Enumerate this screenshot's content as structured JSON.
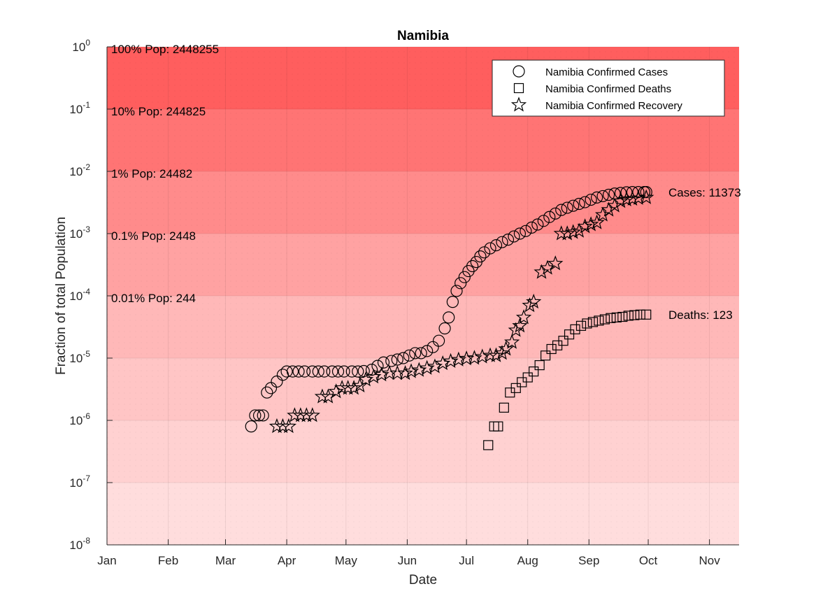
{
  "chart_data": {
    "type": "scatter",
    "title": "Namibia",
    "xlabel": "Date",
    "ylabel": "Fraction of total Population",
    "x_ticks": [
      "Jan",
      "Feb",
      "Mar",
      "Apr",
      "May",
      "Jun",
      "Jul",
      "Aug",
      "Sep",
      "Oct",
      "Nov"
    ],
    "x_range_days": [
      0,
      320
    ],
    "y_scale": "log",
    "ylim": [
      1e-08,
      1
    ],
    "y_ticks": [
      1,
      0.1,
      0.01,
      0.001,
      0.0001,
      1e-05,
      1e-06,
      1e-07,
      1e-08
    ],
    "population_bands": [
      {
        "label": "100% Pop: 2448255",
        "from": 0.1,
        "to": 1,
        "color": "#ff5e5e"
      },
      {
        "label": "10% Pop: 244825",
        "from": 0.01,
        "to": 0.1,
        "color": "#ff7474"
      },
      {
        "label": "1% Pop: 24482",
        "from": 0.001,
        "to": 0.01,
        "color": "#ff8b8b"
      },
      {
        "label": "0.1% Pop: 2448",
        "from": 0.0001,
        "to": 0.001,
        "color": "#ffa2a2"
      },
      {
        "label": "0.01% Pop: 244",
        "from": 1e-05,
        "to": 0.0001,
        "color": "#ffb8b8"
      },
      {
        "label": "",
        "from": 1e-06,
        "to": 1e-05,
        "color": "#ffc5c5"
      },
      {
        "label": "",
        "from": 1e-07,
        "to": 1e-06,
        "color": "#ffd1d1"
      },
      {
        "label": "",
        "from": 1e-08,
        "to": 1e-07,
        "color": "#ffdddd"
      }
    ],
    "legend": {
      "placement": "top-right",
      "entries": [
        "Namibia Confirmed Cases",
        "Namibia Confirmed Deaths",
        "Namibia Confirmed Recovery"
      ]
    },
    "end_labels": {
      "cases": "Cases: 11373",
      "deaths": "Deaths: 123"
    },
    "series": [
      {
        "name": "Namibia Confirmed Cases",
        "marker": "circle",
        "x": [
          "2020-03-14",
          "2020-03-16",
          "2020-03-18",
          "2020-03-20",
          "2020-03-22",
          "2020-03-24",
          "2020-03-27",
          "2020-03-30",
          "2020-04-01",
          "2020-04-04",
          "2020-04-07",
          "2020-04-10",
          "2020-04-14",
          "2020-04-17",
          "2020-04-20",
          "2020-04-24",
          "2020-04-27",
          "2020-04-30",
          "2020-05-04",
          "2020-05-07",
          "2020-05-10",
          "2020-05-14",
          "2020-05-17",
          "2020-05-20",
          "2020-05-24",
          "2020-05-27",
          "2020-05-30",
          "2020-06-02",
          "2020-06-05",
          "2020-06-08",
          "2020-06-11",
          "2020-06-14",
          "2020-06-17",
          "2020-06-20",
          "2020-06-22",
          "2020-06-24",
          "2020-06-26",
          "2020-06-28",
          "2020-06-30",
          "2020-07-02",
          "2020-07-04",
          "2020-07-06",
          "2020-07-08",
          "2020-07-10",
          "2020-07-13",
          "2020-07-16",
          "2020-07-19",
          "2020-07-22",
          "2020-07-25",
          "2020-07-28",
          "2020-07-31",
          "2020-08-03",
          "2020-08-06",
          "2020-08-09",
          "2020-08-12",
          "2020-08-15",
          "2020-08-18",
          "2020-08-21",
          "2020-08-24",
          "2020-08-27",
          "2020-08-30",
          "2020-09-02",
          "2020-09-05",
          "2020-09-08",
          "2020-09-11",
          "2020-09-14",
          "2020-09-17",
          "2020-09-20",
          "2020-09-23",
          "2020-09-26",
          "2020-09-29",
          "2020-09-30"
        ],
        "values": [
          8e-07,
          1.2e-06,
          1.2e-06,
          1.2e-06,
          2.8e-06,
          3.3e-06,
          4.2e-06,
          5.4e-06,
          6.1e-06,
          6.1e-06,
          6.1e-06,
          6.1e-06,
          6.1e-06,
          6.1e-06,
          6.1e-06,
          6.1e-06,
          6.1e-06,
          6.1e-06,
          6.1e-06,
          6.1e-06,
          6.2e-06,
          6.5e-06,
          7.5e-06,
          8.5e-06,
          9e-06,
          9.5e-06,
          1e-05,
          1.1e-05,
          1.2e-05,
          1.2e-05,
          1.3e-05,
          1.5e-05,
          1.9e-05,
          3e-05,
          4.5e-05,
          8e-05,
          0.00012,
          0.00016,
          0.0002,
          0.00025,
          0.0003,
          0.00035,
          0.00043,
          0.0005,
          0.00058,
          0.00065,
          0.00073,
          0.0008,
          0.0009,
          0.001,
          0.0011,
          0.00125,
          0.0014,
          0.0016,
          0.00185,
          0.0021,
          0.0024,
          0.0026,
          0.0028,
          0.003,
          0.0032,
          0.0035,
          0.0038,
          0.004,
          0.0042,
          0.0044,
          0.0045,
          0.0046,
          0.00465,
          0.00465,
          0.00465,
          0.00465
        ]
      },
      {
        "name": "Namibia Confirmed Deaths",
        "marker": "square",
        "x": [
          "2020-07-12",
          "2020-07-15",
          "2020-07-17",
          "2020-07-20",
          "2020-07-23",
          "2020-07-26",
          "2020-07-29",
          "2020-08-01",
          "2020-08-04",
          "2020-08-07",
          "2020-08-10",
          "2020-08-13",
          "2020-08-16",
          "2020-08-19",
          "2020-08-22",
          "2020-08-25",
          "2020-08-28",
          "2020-08-31",
          "2020-09-03",
          "2020-09-06",
          "2020-09-09",
          "2020-09-12",
          "2020-09-15",
          "2020-09-18",
          "2020-09-21",
          "2020-09-24",
          "2020-09-27",
          "2020-09-30"
        ],
        "values": [
          4e-07,
          8e-07,
          8e-07,
          1.6e-06,
          2.8e-06,
          3.3e-06,
          4.1e-06,
          4.9e-06,
          6.1e-06,
          7.7e-06,
          1.1e-05,
          1.4e-05,
          1.6e-05,
          1.9e-05,
          2.4e-05,
          2.9e-05,
          3.3e-05,
          3.6e-05,
          3.8e-05,
          4e-05,
          4.2e-05,
          4.4e-05,
          4.5e-05,
          4.6e-05,
          4.8e-05,
          4.9e-05,
          5e-05,
          5e-05
        ]
      },
      {
        "name": "Namibia Confirmed Recovery",
        "marker": "star",
        "x": [
          "2020-03-27",
          "2020-03-30",
          "2020-04-02",
          "2020-04-05",
          "2020-04-08",
          "2020-04-11",
          "2020-04-14",
          "2020-04-19",
          "2020-04-22",
          "2020-04-26",
          "2020-04-29",
          "2020-05-02",
          "2020-05-05",
          "2020-05-08",
          "2020-05-11",
          "2020-05-15",
          "2020-05-19",
          "2020-05-23",
          "2020-05-27",
          "2020-05-31",
          "2020-06-03",
          "2020-06-07",
          "2020-06-11",
          "2020-06-15",
          "2020-06-19",
          "2020-06-23",
          "2020-06-27",
          "2020-07-01",
          "2020-07-05",
          "2020-07-09",
          "2020-07-13",
          "2020-07-16",
          "2020-07-19",
          "2020-07-21",
          "2020-07-24",
          "2020-07-26",
          "2020-07-28",
          "2020-07-30",
          "2020-08-02",
          "2020-08-04",
          "2020-08-08",
          "2020-08-11",
          "2020-08-15",
          "2020-08-18",
          "2020-08-21",
          "2020-08-24",
          "2020-08-27",
          "2020-08-30",
          "2020-09-02",
          "2020-09-05",
          "2020-09-08",
          "2020-09-11",
          "2020-09-14",
          "2020-09-17",
          "2020-09-20",
          "2020-09-23",
          "2020-09-26",
          "2020-09-30"
        ],
        "values": [
          8e-07,
          8e-07,
          8e-07,
          1.2e-06,
          1.2e-06,
          1.2e-06,
          1.2e-06,
          2.4e-06,
          2.4e-06,
          2.9e-06,
          3.3e-06,
          3.3e-06,
          3.3e-06,
          3.6e-06,
          4.5e-06,
          5e-06,
          5.4e-06,
          5.7e-06,
          5.7e-06,
          5.7e-06,
          6.1e-06,
          6.4e-06,
          6.9e-06,
          7.3e-06,
          8.2e-06,
          8.9e-06,
          9.4e-06,
          9.8e-06,
          1e-05,
          1.05e-05,
          1.1e-05,
          1.1e-05,
          1.2e-05,
          1.4e-05,
          1.8e-05,
          2.8e-05,
          3.3e-05,
          4.5e-05,
          7e-05,
          8e-05,
          0.00024,
          0.00028,
          0.00033,
          0.001,
          0.001,
          0.00105,
          0.0011,
          0.0013,
          0.0014,
          0.0015,
          0.002,
          0.0024,
          0.0028,
          0.0033,
          0.0035,
          0.0036,
          0.0037,
          0.0038
        ]
      }
    ]
  }
}
